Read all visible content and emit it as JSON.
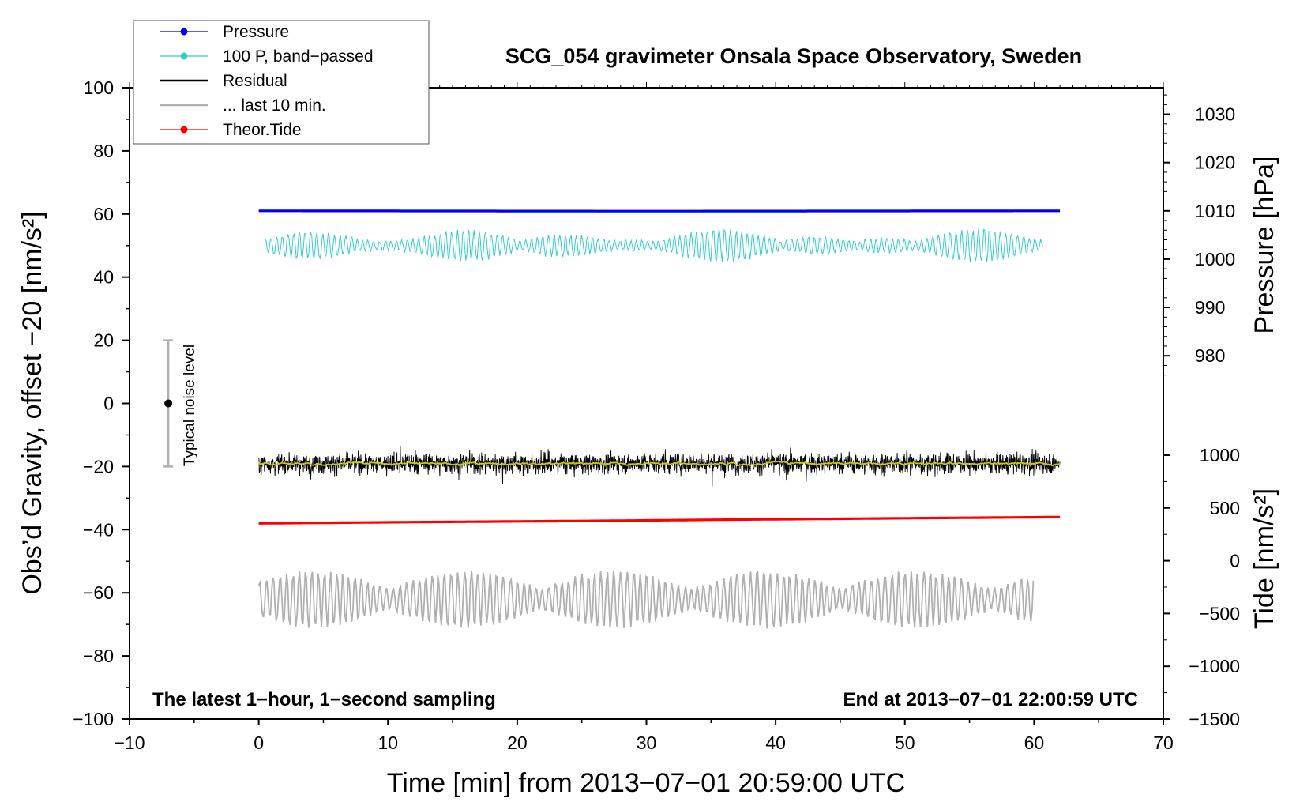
{
  "chart_data": {
    "type": "line",
    "title": "SCG_054 gravimeter Onsala Space Observatory, Sweden",
    "xlabel": "Time [min] from 2013−07−01 20:59:00 UTC",
    "ylabel_left": "Obs’d Gravity, offset −20 [nm/s²]",
    "ylabel_right_top": "Pressure [hPa]",
    "ylabel_right_bottom": "Tide [nm/s²]",
    "xlim": [
      -10,
      70
    ],
    "ylim": [
      -100,
      100
    ],
    "x_ticks": [
      "−10",
      "0",
      "10",
      "20",
      "30",
      "40",
      "50",
      "60",
      "70"
    ],
    "y_ticks": [
      "−100",
      "−80",
      "−60",
      "−40",
      "−20",
      "0",
      "20",
      "40",
      "60",
      "80",
      "100"
    ],
    "pressure_ticks": [
      "980",
      "990",
      "1000",
      "1010",
      "1020",
      "1030"
    ],
    "tide_ticks": [
      "−1500",
      "−1000",
      "−500",
      "0",
      "500",
      "1000"
    ],
    "corner_left": "The latest 1−hour, 1−second sampling",
    "corner_right": "End at 2013−07−01 22:00:59 UTC",
    "noise_label": "Typical noise level",
    "noise_bar": {
      "x": -7,
      "center": 0,
      "low": -20,
      "high": 20
    },
    "grid": false,
    "legend_position": "top-left",
    "series": [
      {
        "name": "Pressure",
        "color": "#0000ff",
        "x": [
          0,
          30,
          62
        ],
        "values": [
          61,
          60.9,
          61
        ]
      },
      {
        "name": "100 P, band−passed",
        "color": "#33cccc",
        "x": [
          0,
          62
        ],
        "values": [
          50,
          50
        ],
        "amplitude": 9
      },
      {
        "name": "Residual",
        "color": "#000000",
        "x": [
          0,
          62
        ],
        "values": [
          -19,
          -19
        ],
        "amplitude": 16
      },
      {
        "name": "... last 10 min.",
        "color": "#b0b0b0",
        "x": [
          0,
          60
        ],
        "values": [
          -62,
          -62
        ],
        "amplitude": 12
      },
      {
        "name": "Theor.Tide",
        "color": "#ff0000",
        "x": [
          0,
          12,
          26,
          34,
          43,
          52,
          62
        ],
        "values": [
          -38,
          -37.6,
          -37.2,
          -36.9,
          -36.6,
          -36.3,
          -36
        ]
      }
    ],
    "smoothed_color": "#cccc00"
  }
}
